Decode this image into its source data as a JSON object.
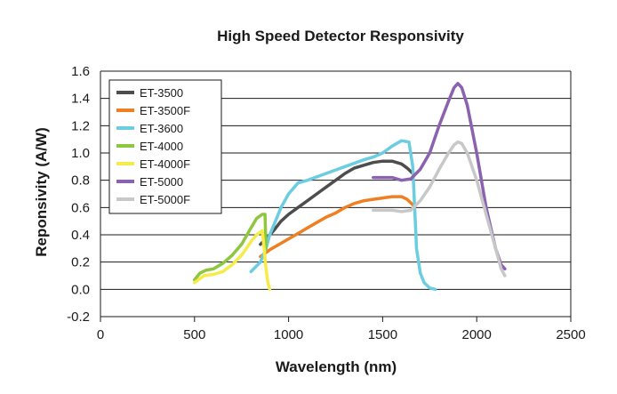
{
  "chart_data": {
    "type": "line",
    "title": "High Speed Detector Responsivity",
    "xlabel": "Wavelength (nm)",
    "ylabel": "Reponsivity (A/W)",
    "xlim": [
      0,
      2500
    ],
    "ylim": [
      -0.2,
      1.6
    ],
    "x_ticks": [
      0,
      500,
      1000,
      1500,
      2000,
      2500
    ],
    "y_ticks": [
      -0.2,
      0.0,
      0.2,
      0.4,
      0.6,
      0.8,
      1.0,
      1.2,
      1.4,
      1.6
    ],
    "x_tick_labels": [
      "0",
      "500",
      "1000",
      "1500",
      "2000",
      "2500"
    ],
    "y_tick_labels": [
      "-0.2",
      "0.0",
      "0.2",
      "0.4",
      "0.6",
      "0.8",
      "1.0",
      "1.2",
      "1.4",
      "1.6"
    ],
    "grid": "horizontal",
    "legend_position": "top-left",
    "series": [
      {
        "name": "ET-3500",
        "color": "#4d4d4d",
        "x": [
          850,
          880,
          920,
          960,
          1000,
          1050,
          1100,
          1150,
          1200,
          1250,
          1300,
          1350,
          1400,
          1450,
          1500,
          1550,
          1600,
          1630,
          1660
        ],
        "y": [
          0.33,
          0.37,
          0.43,
          0.5,
          0.55,
          0.6,
          0.65,
          0.7,
          0.75,
          0.8,
          0.85,
          0.89,
          0.91,
          0.93,
          0.94,
          0.94,
          0.92,
          0.89,
          0.85
        ]
      },
      {
        "name": "ET-3500F",
        "color": "#f07f22",
        "x": [
          850,
          900,
          950,
          1000,
          1050,
          1100,
          1150,
          1200,
          1250,
          1300,
          1350,
          1400,
          1450,
          1500,
          1550,
          1600,
          1630,
          1660
        ],
        "y": [
          0.24,
          0.29,
          0.33,
          0.37,
          0.41,
          0.45,
          0.49,
          0.53,
          0.56,
          0.6,
          0.63,
          0.65,
          0.66,
          0.67,
          0.68,
          0.68,
          0.66,
          0.62
        ]
      },
      {
        "name": "ET-3600",
        "color": "#6ccde0",
        "x": [
          800,
          850,
          880,
          900,
          930,
          960,
          1000,
          1050,
          1100,
          1200,
          1300,
          1400,
          1450,
          1500,
          1550,
          1600,
          1640,
          1660,
          1670,
          1680,
          1700,
          1720,
          1750,
          1780
        ],
        "y": [
          0.13,
          0.2,
          0.3,
          0.4,
          0.5,
          0.6,
          0.7,
          0.78,
          0.8,
          0.85,
          0.9,
          0.95,
          0.97,
          1.0,
          1.05,
          1.09,
          1.08,
          0.9,
          0.6,
          0.3,
          0.12,
          0.05,
          0.01,
          0.0
        ]
      },
      {
        "name": "ET-4000",
        "color": "#8dc63f",
        "x": [
          500,
          530,
          560,
          600,
          650,
          700,
          750,
          800,
          830,
          860,
          875,
          880
        ],
        "y": [
          0.07,
          0.12,
          0.14,
          0.15,
          0.19,
          0.25,
          0.33,
          0.45,
          0.52,
          0.55,
          0.55,
          0.3
        ]
      },
      {
        "name": "ET-4000F",
        "color": "#f5ec47",
        "x": [
          500,
          550,
          600,
          650,
          700,
          750,
          800,
          830,
          860,
          870,
          880,
          890,
          900
        ],
        "y": [
          0.05,
          0.1,
          0.11,
          0.13,
          0.18,
          0.25,
          0.35,
          0.4,
          0.43,
          0.3,
          0.15,
          0.05,
          0.0
        ]
      },
      {
        "name": "ET-5000",
        "color": "#8b62b0",
        "x": [
          1450,
          1500,
          1550,
          1600,
          1650,
          1700,
          1750,
          1800,
          1850,
          1880,
          1900,
          1920,
          1950,
          2000,
          2050,
          2100,
          2130,
          2150
        ],
        "y": [
          0.82,
          0.82,
          0.82,
          0.8,
          0.81,
          0.88,
          1.0,
          1.2,
          1.38,
          1.48,
          1.51,
          1.48,
          1.35,
          1.0,
          0.6,
          0.3,
          0.18,
          0.15
        ]
      },
      {
        "name": "ET-5000F",
        "color": "#c8c8c8",
        "x": [
          1450,
          1500,
          1550,
          1600,
          1650,
          1700,
          1750,
          1800,
          1850,
          1880,
          1900,
          1920,
          1950,
          2000,
          2050,
          2100,
          2130,
          2150
        ],
        "y": [
          0.58,
          0.58,
          0.58,
          0.57,
          0.58,
          0.65,
          0.75,
          0.88,
          1.0,
          1.06,
          1.08,
          1.07,
          1.0,
          0.8,
          0.55,
          0.3,
          0.15,
          0.1
        ]
      }
    ]
  }
}
